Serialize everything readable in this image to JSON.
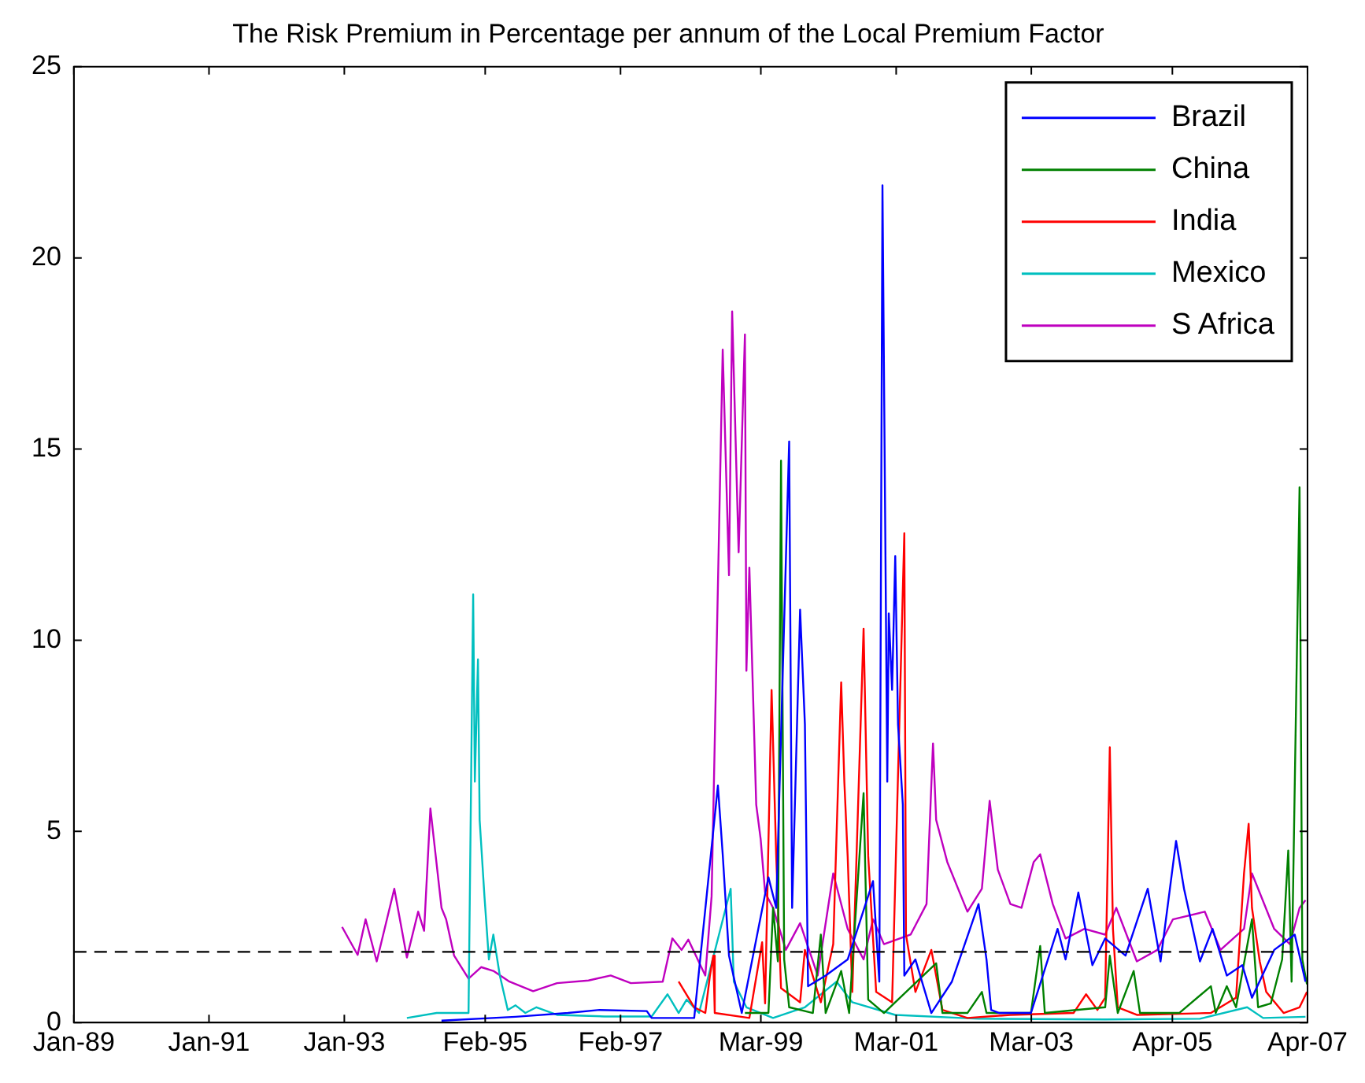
{
  "chart_data": {
    "type": "line",
    "title": "The Risk Premium in Percentage per annum of the Local Premium Factor",
    "xlim": [
      "1989-01-01",
      "2007-04-01"
    ],
    "xticks": [
      {
        "value": "1989-01-01",
        "label": "Jan-89"
      },
      {
        "value": "1991-01-01",
        "label": "Jan-91"
      },
      {
        "value": "1993-01-01",
        "label": "Jan-93"
      },
      {
        "value": "1995-02-01",
        "label": "Feb-95"
      },
      {
        "value": "1997-02-01",
        "label": "Feb-97"
      },
      {
        "value": "1999-03-01",
        "label": "Mar-99"
      },
      {
        "value": "2001-03-01",
        "label": "Mar-01"
      },
      {
        "value": "2003-03-01",
        "label": "Mar-03"
      },
      {
        "value": "2005-04-01",
        "label": "Apr-05"
      },
      {
        "value": "2007-04-01",
        "label": "Apr-07"
      }
    ],
    "ylim": [
      0,
      25
    ],
    "yticks": [
      0,
      5,
      10,
      15,
      20,
      25
    ],
    "grid": false,
    "legend": "top right",
    "marker": "none",
    "line_style": "solid",
    "ref_lines": [
      {
        "axis": "y",
        "value": 1.85,
        "label": null,
        "color": "#000000",
        "line_style": "dashed"
      }
    ],
    "series": [
      {
        "name": "Brazil",
        "color": "#0000ff",
        "x": [
          "1994-06-10",
          "1995-07-15",
          "1996-04-23",
          "1996-10-11",
          "1997-06-23",
          "1997-07-19",
          "1998-03-06",
          "1998-07-12",
          "1998-08-07",
          "1998-09-10",
          "1998-11-18",
          "1999-04-11",
          "1999-05-23",
          "1999-08-01",
          "1999-08-17",
          "1999-09-29",
          "1999-10-25",
          "1999-11-11",
          "2000-02-14",
          "2000-06-12",
          "2000-10-27",
          "2000-11-30",
          "2000-12-17",
          "2001-01-12",
          "2001-01-20",
          "2001-02-07",
          "2001-02-24",
          "2001-03-11",
          "2001-04-06",
          "2001-04-14",
          "2001-06-13",
          "2001-09-07",
          "2001-12-27",
          "2002-05-20",
          "2002-07-02",
          "2002-07-27",
          "2002-09-09",
          "2003-02-27",
          "2003-07-21",
          "2003-09-02",
          "2003-11-10",
          "2004-01-25",
          "2004-04-03",
          "2004-07-22",
          "2004-11-19",
          "2005-01-27",
          "2005-04-21",
          "2005-06-03",
          "2005-08-28",
          "2005-11-04",
          "2006-01-20",
          "2006-04-14",
          "2006-06-05",
          "2006-10-03",
          "2007-01-22",
          "2007-03-21"
        ],
        "values": [
          0.05,
          0.15,
          0.25,
          0.33,
          0.3,
          0.12,
          0.12,
          6.2,
          4.4,
          1.75,
          0.25,
          3.8,
          3.0,
          15.2,
          3.0,
          10.8,
          7.8,
          0.95,
          1.23,
          1.65,
          3.7,
          1.07,
          21.9,
          6.3,
          10.7,
          8.7,
          12.2,
          7.8,
          5.7,
          1.23,
          1.65,
          0.25,
          1.07,
          3.1,
          1.65,
          0.33,
          0.25,
          0.25,
          2.45,
          1.65,
          3.4,
          1.5,
          2.2,
          1.75,
          3.5,
          1.6,
          4.75,
          3.5,
          1.6,
          2.45,
          1.23,
          1.5,
          0.65,
          1.9,
          2.3,
          1.07
        ]
      },
      {
        "name": "China",
        "color": "#008000",
        "x": [
          "1998-12-05",
          "1999-04-11",
          "1999-05-06",
          "1999-06-01",
          "1999-06-18",
          "1999-07-05",
          "1999-08-01",
          "1999-12-07",
          "2000-01-19",
          "2000-02-14",
          "2000-05-08",
          "2000-06-20",
          "2000-09-06",
          "2000-10-01",
          "2000-12-25",
          "2001-10-03",
          "2001-11-06",
          "2002-03-21",
          "2002-06-07",
          "2002-07-02",
          "2003-02-27",
          "2003-04-18",
          "2003-05-13",
          "2004-04-03",
          "2004-04-28",
          "2004-06-10",
          "2004-09-04",
          "2004-10-08",
          "2005-05-08",
          "2005-10-26",
          "2005-11-21",
          "2006-01-20",
          "2006-03-11",
          "2006-06-05",
          "2006-07-08",
          "2006-09-15",
          "2006-11-15",
          "2006-12-18",
          "2007-01-05",
          "2007-02-17",
          "2007-03-04",
          "2007-03-29"
        ],
        "values": [
          0.25,
          0.25,
          3.0,
          1.6,
          14.7,
          1.65,
          0.4,
          0.25,
          2.3,
          0.25,
          1.35,
          0.25,
          6.0,
          0.6,
          0.25,
          1.55,
          0.25,
          0.25,
          0.8,
          0.25,
          0.25,
          2.0,
          0.25,
          0.4,
          1.75,
          0.25,
          1.35,
          0.25,
          0.25,
          0.95,
          0.25,
          0.95,
          0.4,
          2.7,
          0.4,
          0.5,
          1.65,
          4.5,
          1.07,
          14.0,
          1.65,
          1.0
        ]
      },
      {
        "name": "India",
        "color": "#ff0000",
        "x": [
          "1997-12-12",
          "1998-03-06",
          "1998-05-05",
          "1998-05-30",
          "1998-06-17",
          "1998-06-25",
          "1998-12-29",
          "1999-03-08",
          "1999-03-24",
          "1999-04-28",
          "1999-05-23",
          "1999-06-18",
          "1999-09-29",
          "1999-10-25",
          "2000-01-19",
          "2000-03-26",
          "2000-05-08",
          "2000-05-25",
          "2000-06-12",
          "2000-07-07",
          "2000-09-06",
          "2000-10-01",
          "2000-11-13",
          "2001-02-07",
          "2001-04-14",
          "2001-04-23",
          "2001-06-13",
          "2001-09-07",
          "2001-11-06",
          "2002-03-21",
          "2002-11-08",
          "2003-10-15",
          "2003-12-22",
          "2004-02-21",
          "2004-04-03",
          "2004-04-28",
          "2004-05-15",
          "2004-06-10",
          "2004-09-21",
          "2005-10-26",
          "2006-03-11",
          "2006-04-23",
          "2006-05-18",
          "2006-06-05",
          "2006-07-17",
          "2006-08-21",
          "2006-11-23",
          "2007-02-17",
          "2007-03-29"
        ],
        "values": [
          1.07,
          0.4,
          0.25,
          1.23,
          1.75,
          0.25,
          0.12,
          2.1,
          0.5,
          8.7,
          4.35,
          0.9,
          0.53,
          1.9,
          0.53,
          2.05,
          8.9,
          6.3,
          4.35,
          0.8,
          10.3,
          4.35,
          0.8,
          0.53,
          12.8,
          2.3,
          0.8,
          1.9,
          0.33,
          0.12,
          0.2,
          0.25,
          0.74,
          0.33,
          0.65,
          7.2,
          2.45,
          0.4,
          0.2,
          0.25,
          0.65,
          3.9,
          5.2,
          3.0,
          1.6,
          0.8,
          0.25,
          0.4,
          0.8
        ]
      },
      {
        "name": "Mexico",
        "color": "#00bfbf",
        "x": [
          "1993-12-05",
          "1994-05-15",
          "1994-11-03",
          "1994-11-28",
          "1994-12-07",
          "1994-12-24",
          "1995-01-02",
          "1995-01-28",
          "1995-02-21",
          "1995-03-17",
          "1995-04-21",
          "1995-06-03",
          "1995-07-15",
          "1995-09-06",
          "1995-11-05",
          "1996-02-24",
          "1996-11-07",
          "1997-07-19",
          "1997-10-13",
          "1997-12-12",
          "1998-01-24",
          "1998-04-01",
          "1998-09-19",
          "1998-10-06",
          "1998-12-13",
          "1999-05-06",
          "1999-10-25",
          "2000-04-13",
          "2000-07-07",
          "2001-02-24",
          "2002-05-20",
          "2004-04-03",
          "2005-08-28",
          "2006-05-10",
          "2006-08-04",
          "2007-03-21"
        ],
        "values": [
          0.12,
          0.25,
          0.25,
          11.2,
          6.3,
          9.5,
          5.3,
          3.3,
          1.65,
          2.3,
          1.23,
          0.33,
          0.45,
          0.25,
          0.4,
          0.2,
          0.16,
          0.16,
          0.74,
          0.25,
          0.6,
          0.25,
          3.5,
          1.07,
          0.4,
          0.12,
          0.4,
          1.07,
          0.53,
          0.2,
          0.1,
          0.08,
          0.1,
          0.4,
          0.12,
          0.15
        ]
      },
      {
        "name": "S Africa",
        "color": "#bf00bf",
        "x": [
          "1992-12-20",
          "1993-03-14",
          "1993-04-26",
          "1993-06-25",
          "1993-09-28",
          "1993-12-05",
          "1994-02-04",
          "1994-03-08",
          "1994-04-11",
          "1994-06-10",
          "1994-07-05",
          "1994-08-17",
          "1994-11-03",
          "1995-01-10",
          "1995-03-17",
          "1995-06-12",
          "1995-10-18",
          "1996-02-24",
          "1996-08-12",
          "1996-12-10",
          "1997-03-29",
          "1997-09-17",
          "1997-11-08",
          "1997-12-28",
          "1998-02-02",
          "1998-05-05",
          "1998-06-08",
          "1998-08-07",
          "1998-09-10",
          "1998-09-27",
          "1998-11-01",
          "1998-12-05",
          "1998-12-13",
          "1998-12-29",
          "1999-02-04",
          "1999-02-28",
          "1999-03-24",
          "1999-05-06",
          "1999-07-14",
          "1999-09-29",
          "2000-01-02",
          "2000-03-26",
          "2000-06-12",
          "2000-09-06",
          "2000-10-27",
          "2000-12-25",
          "2001-05-18",
          "2001-08-12",
          "2001-09-16",
          "2001-10-03",
          "2001-12-02",
          "2002-03-21",
          "2002-06-07",
          "2002-07-19",
          "2002-09-01",
          "2002-11-08",
          "2003-01-07",
          "2003-03-14",
          "2003-04-18",
          "2003-06-25",
          "2003-09-02",
          "2003-12-13",
          "2004-04-03",
          "2004-06-02",
          "2004-09-21",
          "2005-01-10",
          "2005-04-04",
          "2005-09-23",
          "2005-12-17",
          "2006-04-23",
          "2006-06-05",
          "2006-10-03",
          "2006-12-27",
          "2007-02-17",
          "2007-03-21"
        ],
        "values": [
          2.5,
          1.77,
          2.7,
          1.6,
          3.5,
          1.7,
          2.9,
          2.4,
          5.6,
          3.0,
          2.7,
          1.75,
          1.15,
          1.45,
          1.35,
          1.07,
          0.82,
          1.03,
          1.1,
          1.23,
          1.03,
          1.07,
          2.2,
          1.9,
          2.17,
          1.23,
          3.3,
          17.6,
          11.7,
          18.6,
          12.3,
          18.0,
          9.2,
          11.9,
          5.7,
          4.8,
          3.4,
          3.0,
          1.9,
          2.6,
          1.23,
          3.9,
          2.45,
          1.65,
          2.7,
          2.05,
          2.3,
          3.1,
          7.3,
          5.3,
          4.2,
          2.9,
          3.5,
          5.8,
          4.0,
          3.1,
          3.0,
          4.2,
          4.4,
          3.1,
          2.2,
          2.45,
          2.3,
          3.0,
          1.6,
          1.9,
          2.7,
          2.9,
          1.9,
          2.45,
          3.9,
          2.45,
          2.05,
          3.0,
          3.2
        ]
      }
    ]
  }
}
